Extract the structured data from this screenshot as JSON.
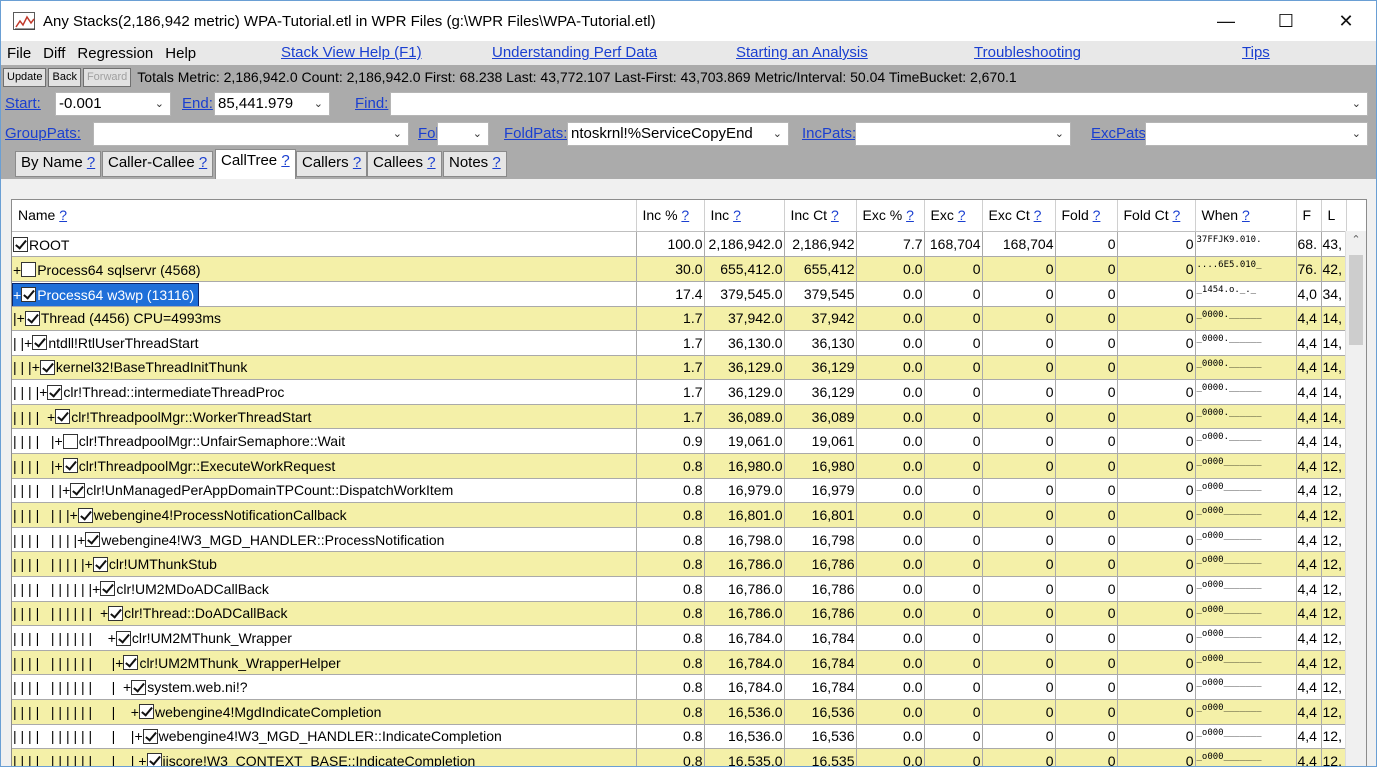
{
  "window": {
    "title": "Any Stacks(2,186,942 metric) WPA-Tutorial.etl in WPR Files (g:\\WPR Files\\WPA-Tutorial.etl)",
    "minimize": "—",
    "maximize": "☐",
    "close": "✕"
  },
  "menu": {
    "items": [
      "File",
      "Diff",
      "Regression",
      "Help"
    ],
    "links": [
      "Stack View Help (F1)",
      "Understanding Perf Data",
      "Starting an Analysis",
      "Troubleshooting",
      "Tips"
    ]
  },
  "toolbar": {
    "update": "Update",
    "back": "Back",
    "forward": "Forward",
    "stats": "Totals Metric: 2,186,942.0  Count: 2,186,942.0  First: 68.238 Last: 43,772.107  Last-First: 43,703.869  Metric/Interval: 50.04  TimeBucket: 2,670.1"
  },
  "filters": {
    "start_label": "Start:",
    "start_value": "-0.001",
    "end_label": "End:",
    "end_value": "85,441.979",
    "find_label": "Find:",
    "find_value": "",
    "grouppats_label": "GroupPats:",
    "grouppats_value": "",
    "foldpct_label": "Fold%:",
    "foldpct_value": "",
    "foldpats_label": "FoldPats:",
    "foldpats_value": "ntoskrnl!%ServiceCopyEnd",
    "incpats_label": "IncPats:",
    "incpats_value": "",
    "excpats_label": "ExcPats:",
    "excpats_value": ""
  },
  "tabs": [
    {
      "label": "By Name",
      "q": "?"
    },
    {
      "label": "Caller-Callee",
      "q": "?"
    },
    {
      "label": "CallTree",
      "q": "?"
    },
    {
      "label": "Callers",
      "q": "?"
    },
    {
      "label": "Callees",
      "q": "?"
    },
    {
      "label": "Notes",
      "q": "?"
    }
  ],
  "columns": [
    {
      "label": "Name",
      "q": "?"
    },
    {
      "label": "Inc %",
      "q": "?"
    },
    {
      "label": "Inc",
      "q": "?"
    },
    {
      "label": "Inc Ct",
      "q": "?"
    },
    {
      "label": "Exc %",
      "q": "?"
    },
    {
      "label": "Exc",
      "q": "?"
    },
    {
      "label": "Exc Ct",
      "q": "?"
    },
    {
      "label": "Fold",
      "q": "?"
    },
    {
      "label": "Fold Ct",
      "q": "?"
    },
    {
      "label": "When",
      "q": "?"
    },
    {
      "label": "F",
      "q": ""
    },
    {
      "label": "L",
      "q": ""
    }
  ],
  "rows": [
    {
      "indent": "",
      "expander": "",
      "checked": true,
      "name": "ROOT",
      "inc_pct": "100.0",
      "inc": "2,186,942.0",
      "inc_ct": "2,186,942",
      "exc_pct": "7.7",
      "exc": "168,704",
      "exc_ct": "168,704",
      "fold": "0",
      "fold_ct": "0",
      "when": "37FFJK9.010.",
      "f": "68.",
      "l": "43,"
    },
    {
      "indent": "",
      "expander": "+",
      "checked": false,
      "name": "Process64 sqlservr (4568)",
      "inc_pct": "30.0",
      "inc": "655,412.0",
      "inc_ct": "655,412",
      "exc_pct": "0.0",
      "exc": "0",
      "exc_ct": "0",
      "fold": "0",
      "fold_ct": "0",
      "when": "....6E5.010_",
      "f": "76.",
      "l": "42,"
    },
    {
      "indent": "",
      "expander": "+",
      "checked": true,
      "name": "Process64 w3wp (13116)",
      "inc_pct": "17.4",
      "inc": "379,545.0",
      "inc_ct": "379,545",
      "exc_pct": "0.0",
      "exc": "0",
      "exc_ct": "0",
      "fold": "0",
      "fold_ct": "0",
      "when": "_1454.o._._",
      "f": "4,0",
      "l": "34,"
    },
    {
      "indent": "|",
      "expander": "+",
      "checked": true,
      "name": "Thread (4456) CPU=4993ms",
      "inc_pct": "1.7",
      "inc": "37,942.0",
      "inc_ct": "37,942",
      "exc_pct": "0.0",
      "exc": "0",
      "exc_ct": "0",
      "fold": "0",
      "fold_ct": "0",
      "when": "_0000.______",
      "f": "4,4",
      "l": "14,"
    },
    {
      "indent": "| |",
      "expander": "+",
      "checked": true,
      "name": "ntdll!RtlUserThreadStart",
      "inc_pct": "1.7",
      "inc": "36,130.0",
      "inc_ct": "36,130",
      "exc_pct": "0.0",
      "exc": "0",
      "exc_ct": "0",
      "fold": "0",
      "fold_ct": "0",
      "when": "_0000.______",
      "f": "4,4",
      "l": "14,"
    },
    {
      "indent": "| | |",
      "expander": "+",
      "checked": true,
      "name": "kernel32!BaseThreadInitThunk",
      "inc_pct": "1.7",
      "inc": "36,129.0",
      "inc_ct": "36,129",
      "exc_pct": "0.0",
      "exc": "0",
      "exc_ct": "0",
      "fold": "0",
      "fold_ct": "0",
      "when": "_0000.______",
      "f": "4,4",
      "l": "14,"
    },
    {
      "indent": "| | | |",
      "expander": "+",
      "checked": true,
      "name": "clr!Thread::intermediateThreadProc",
      "inc_pct": "1.7",
      "inc": "36,129.0",
      "inc_ct": "36,129",
      "exc_pct": "0.0",
      "exc": "0",
      "exc_ct": "0",
      "fold": "0",
      "fold_ct": "0",
      "when": "_0000.______",
      "f": "4,4",
      "l": "14,"
    },
    {
      "indent": "| | | |  ",
      "expander": "+",
      "checked": true,
      "name": "clr!ThreadpoolMgr::WorkerThreadStart",
      "inc_pct": "1.7",
      "inc": "36,089.0",
      "inc_ct": "36,089",
      "exc_pct": "0.0",
      "exc": "0",
      "exc_ct": "0",
      "fold": "0",
      "fold_ct": "0",
      "when": "_0000.______",
      "f": "4,4",
      "l": "14,"
    },
    {
      "indent": "| | | |   |",
      "expander": "+",
      "checked": false,
      "name": "clr!ThreadpoolMgr::UnfairSemaphore::Wait",
      "inc_pct": "0.9",
      "inc": "19,061.0",
      "inc_ct": "19,061",
      "exc_pct": "0.0",
      "exc": "0",
      "exc_ct": "0",
      "fold": "0",
      "fold_ct": "0",
      "when": "_o000.______",
      "f": "4,4",
      "l": "14,"
    },
    {
      "indent": "| | | |   |",
      "expander": "+",
      "checked": true,
      "name": "clr!ThreadpoolMgr::ExecuteWorkRequest",
      "inc_pct": "0.8",
      "inc": "16,980.0",
      "inc_ct": "16,980",
      "exc_pct": "0.0",
      "exc": "0",
      "exc_ct": "0",
      "fold": "0",
      "fold_ct": "0",
      "when": "_o000_______",
      "f": "4,4",
      "l": "12,"
    },
    {
      "indent": "| | | |   | |",
      "expander": "+",
      "checked": true,
      "name": "clr!UnManagedPerAppDomainTPCount::DispatchWorkItem",
      "inc_pct": "0.8",
      "inc": "16,979.0",
      "inc_ct": "16,979",
      "exc_pct": "0.0",
      "exc": "0",
      "exc_ct": "0",
      "fold": "0",
      "fold_ct": "0",
      "when": "_o000_______",
      "f": "4,4",
      "l": "12,"
    },
    {
      "indent": "| | | |   | | |",
      "expander": "+",
      "checked": true,
      "name": "webengine4!ProcessNotificationCallback",
      "inc_pct": "0.8",
      "inc": "16,801.0",
      "inc_ct": "16,801",
      "exc_pct": "0.0",
      "exc": "0",
      "exc_ct": "0",
      "fold": "0",
      "fold_ct": "0",
      "when": "_o000_______",
      "f": "4,4",
      "l": "12,"
    },
    {
      "indent": "| | | |   | | | |",
      "expander": "+",
      "checked": true,
      "name": "webengine4!W3_MGD_HANDLER::ProcessNotification",
      "inc_pct": "0.8",
      "inc": "16,798.0",
      "inc_ct": "16,798",
      "exc_pct": "0.0",
      "exc": "0",
      "exc_ct": "0",
      "fold": "0",
      "fold_ct": "0",
      "when": "_o000_______",
      "f": "4,4",
      "l": "12,"
    },
    {
      "indent": "| | | |   | | | | |",
      "expander": "+",
      "checked": true,
      "name": "clr!UMThunkStub",
      "inc_pct": "0.8",
      "inc": "16,786.0",
      "inc_ct": "16,786",
      "exc_pct": "0.0",
      "exc": "0",
      "exc_ct": "0",
      "fold": "0",
      "fold_ct": "0",
      "when": "_o000_______",
      "f": "4,4",
      "l": "12,"
    },
    {
      "indent": "| | | |   | | | | | |",
      "expander": "+",
      "checked": true,
      "name": "clr!UM2MDoADCallBack",
      "inc_pct": "0.8",
      "inc": "16,786.0",
      "inc_ct": "16,786",
      "exc_pct": "0.0",
      "exc": "0",
      "exc_ct": "0",
      "fold": "0",
      "fold_ct": "0",
      "when": "_o000_______",
      "f": "4,4",
      "l": "12,"
    },
    {
      "indent": "| | | |   | | | | | |  ",
      "expander": "+",
      "checked": true,
      "name": "clr!Thread::DoADCallBack",
      "inc_pct": "0.8",
      "inc": "16,786.0",
      "inc_ct": "16,786",
      "exc_pct": "0.0",
      "exc": "0",
      "exc_ct": "0",
      "fold": "0",
      "fold_ct": "0",
      "when": "_o000_______",
      "f": "4,4",
      "l": "12,"
    },
    {
      "indent": "| | | |   | | | | | |    ",
      "expander": "+",
      "checked": true,
      "name": "clr!UM2MThunk_Wrapper",
      "inc_pct": "0.8",
      "inc": "16,784.0",
      "inc_ct": "16,784",
      "exc_pct": "0.0",
      "exc": "0",
      "exc_ct": "0",
      "fold": "0",
      "fold_ct": "0",
      "when": "_o000_______",
      "f": "4,4",
      "l": "12,"
    },
    {
      "indent": "| | | |   | | | | | |     |",
      "expander": "+",
      "checked": true,
      "name": "clr!UM2MThunk_WrapperHelper",
      "inc_pct": "0.8",
      "inc": "16,784.0",
      "inc_ct": "16,784",
      "exc_pct": "0.0",
      "exc": "0",
      "exc_ct": "0",
      "fold": "0",
      "fold_ct": "0",
      "when": "_o000_______",
      "f": "4,4",
      "l": "12,"
    },
    {
      "indent": "| | | |   | | | | | |     |  ",
      "expander": "+",
      "checked": true,
      "name": "system.web.ni!?",
      "inc_pct": "0.8",
      "inc": "16,784.0",
      "inc_ct": "16,784",
      "exc_pct": "0.0",
      "exc": "0",
      "exc_ct": "0",
      "fold": "0",
      "fold_ct": "0",
      "when": "_o000_______",
      "f": "4,4",
      "l": "12,"
    },
    {
      "indent": "| | | |   | | | | | |     |    ",
      "expander": "+",
      "checked": true,
      "name": "webengine4!MgdIndicateCompletion",
      "inc_pct": "0.8",
      "inc": "16,536.0",
      "inc_ct": "16,536",
      "exc_pct": "0.0",
      "exc": "0",
      "exc_ct": "0",
      "fold": "0",
      "fold_ct": "0",
      "when": "_o000_______",
      "f": "4,4",
      "l": "12,"
    },
    {
      "indent": "| | | |   | | | | | |     |    |",
      "expander": "+",
      "checked": true,
      "name": "webengine4!W3_MGD_HANDLER::IndicateCompletion",
      "inc_pct": "0.8",
      "inc": "16,536.0",
      "inc_ct": "16,536",
      "exc_pct": "0.0",
      "exc": "0",
      "exc_ct": "0",
      "fold": "0",
      "fold_ct": "0",
      "when": "_o000_______",
      "f": "4,4",
      "l": "12,"
    },
    {
      "indent": "| | | |   | | | | | |     |    | ",
      "expander": "+",
      "checked": true,
      "name": "iiscore!W3_CONTEXT_BASE::IndicateCompletion",
      "inc_pct": "0.8",
      "inc": "16,535.0",
      "inc_ct": "16,535",
      "exc_pct": "0.0",
      "exc": "0",
      "exc_ct": "0",
      "fold": "0",
      "fold_ct": "0",
      "when": "_o000_______",
      "f": "4,4",
      "l": "12,"
    }
  ]
}
